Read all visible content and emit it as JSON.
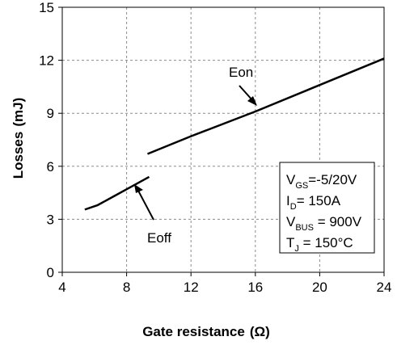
{
  "chart_data": {
    "type": "line",
    "xlabel": "Gate resistance",
    "xlabel_unit": "(Ω)",
    "ylabel": "Losses",
    "ylabel_unit": "(mJ)",
    "xlim": [
      4,
      24
    ],
    "ylim": [
      0,
      15
    ],
    "xticks": [
      4,
      8,
      12,
      16,
      20,
      24
    ],
    "yticks": [
      0,
      3,
      6,
      9,
      12,
      15
    ],
    "grid": true,
    "series": [
      {
        "name": "Eon",
        "x": [
          9.3,
          12,
          16,
          20,
          24
        ],
        "y": [
          6.7,
          7.7,
          9.1,
          10.6,
          12.1
        ]
      },
      {
        "name": "Eoff",
        "x": [
          5.4,
          6.2,
          7.2,
          8.2,
          9.4
        ],
        "y": [
          3.55,
          3.8,
          4.3,
          4.8,
          5.4
        ]
      }
    ],
    "conditions": [
      {
        "main": "V",
        "sub": "GS",
        "rest": "=-5/20V"
      },
      {
        "main": "I",
        "sub": "D",
        "rest": "= 150A"
      },
      {
        "main": "V",
        "sub": "BUS",
        "rest": " = 900V"
      },
      {
        "main": "T",
        "sub": "J",
        "rest": " = 150°C"
      }
    ]
  }
}
